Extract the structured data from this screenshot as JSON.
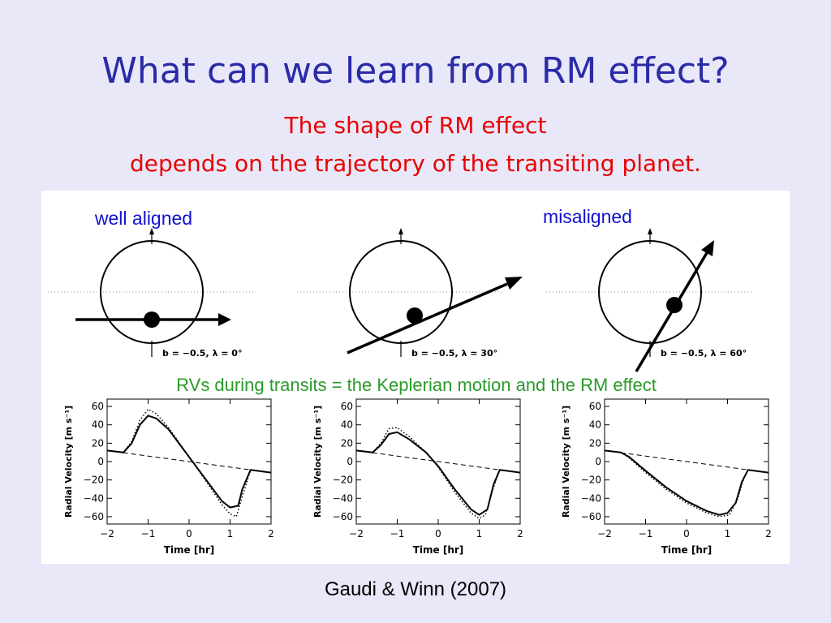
{
  "slide": {
    "title": "What can we learn from RM effect?",
    "subtitle_line1": "The shape of RM effect",
    "subtitle_line2": "depends on the trajectory of the transiting planet.",
    "rv_caption": "RVs during transits = the Keplerian motion and the RM effect",
    "credit": "Gaudi & Winn (2007)"
  },
  "colors": {
    "background": "#e8e8f8",
    "title": "#2b2ba8",
    "subtitle": "#e80000",
    "label_blue": "#1010d0",
    "caption_green": "#2a9a2a"
  },
  "geometry_panels": [
    {
      "label": "well aligned",
      "param_text": "b = −0.5, λ = 0°",
      "lambda_deg": 0
    },
    {
      "label": "",
      "param_text": "b = −0.5, λ = 30°",
      "lambda_deg": 30
    },
    {
      "label": "misaligned",
      "param_text": "b = −0.5, λ = 60°",
      "lambda_deg": 60
    }
  ],
  "chart_data": [
    {
      "type": "line",
      "xlabel": "Time [hr]",
      "ylabel": "Radial Velocity [m s⁻¹]",
      "xlim": [
        -2,
        2
      ],
      "ylim": [
        -68,
        68
      ],
      "xticks": [
        -2,
        -1,
        0,
        1,
        2
      ],
      "yticks": [
        60,
        40,
        20,
        0,
        -20,
        -40,
        -60
      ],
      "series": [
        {
          "style": "dashed",
          "x": [
            -2,
            2
          ],
          "y": [
            12,
            -12
          ]
        },
        {
          "style": "solid",
          "x": [
            -2.0,
            -1.6,
            -1.4,
            -1.2,
            -1.0,
            -0.8,
            -0.5,
            0.0,
            0.5,
            0.8,
            1.0,
            1.2,
            1.3,
            1.5,
            2.0
          ],
          "y": [
            12.0,
            10.0,
            20.0,
            40.0,
            50.0,
            47.0,
            35.0,
            5.0,
            -25.0,
            -43.0,
            -50.0,
            -48.0,
            -30.0,
            -9.0,
            -12.0
          ]
        },
        {
          "style": "dotted",
          "x": [
            -2.0,
            -1.6,
            -1.4,
            -1.2,
            -1.0,
            -0.8,
            -0.5,
            0.0,
            0.5,
            0.8,
            1.0,
            1.15,
            1.3,
            1.5,
            2.0
          ],
          "y": [
            12.0,
            10.0,
            22.0,
            45.0,
            57.0,
            52.0,
            37.0,
            5.0,
            -27.0,
            -47.0,
            -57.0,
            -60.0,
            -38.0,
            -9.0,
            -12.0
          ]
        }
      ]
    },
    {
      "type": "line",
      "xlabel": "Time [hr]",
      "ylabel": "Radial Velocity [m s⁻¹]",
      "xlim": [
        -2,
        2
      ],
      "ylim": [
        -68,
        68
      ],
      "xticks": [
        -2,
        -1,
        0,
        1,
        2
      ],
      "yticks": [
        60,
        40,
        20,
        0,
        -20,
        -40,
        -60
      ],
      "series": [
        {
          "style": "dashed",
          "x": [
            -2,
            2
          ],
          "y": [
            12,
            -12
          ]
        },
        {
          "style": "solid",
          "x": [
            -2.0,
            -1.6,
            -1.4,
            -1.2,
            -1.0,
            -0.7,
            -0.3,
            0.0,
            0.4,
            0.8,
            1.0,
            1.2,
            1.35,
            1.5,
            2.0
          ],
          "y": [
            12.0,
            10.0,
            18.0,
            30.0,
            32.0,
            24.0,
            10.0,
            -5.0,
            -30.0,
            -52.0,
            -58.0,
            -52.0,
            -25.0,
            -9.0,
            -12.0
          ]
        },
        {
          "style": "dotted",
          "x": [
            -2.0,
            -1.6,
            -1.4,
            -1.2,
            -1.0,
            -0.7,
            -0.3,
            0.0,
            0.4,
            0.8,
            1.0,
            1.15,
            1.35,
            1.5,
            2.0
          ],
          "y": [
            12.0,
            10.0,
            20.0,
            36.0,
            37.0,
            27.0,
            10.0,
            -6.0,
            -33.0,
            -56.0,
            -62.0,
            -58.0,
            -28.0,
            -9.0,
            -12.0
          ]
        }
      ]
    },
    {
      "type": "line",
      "xlabel": "Time [hr]",
      "ylabel": "Radial Velocity [m s⁻¹]",
      "xlim": [
        -2,
        2
      ],
      "ylim": [
        -68,
        68
      ],
      "xticks": [
        -2,
        -1,
        0,
        1,
        2
      ],
      "yticks": [
        60,
        40,
        20,
        0,
        -20,
        -40,
        -60
      ],
      "series": [
        {
          "style": "dashed",
          "x": [
            -2,
            2
          ],
          "y": [
            12,
            -12
          ]
        },
        {
          "style": "solid",
          "x": [
            -2.0,
            -1.6,
            -1.4,
            -1.0,
            -0.5,
            0.0,
            0.5,
            0.8,
            1.0,
            1.2,
            1.35,
            1.5,
            2.0
          ],
          "y": [
            12.0,
            10.0,
            5.0,
            -10.0,
            -28.0,
            -43.0,
            -54.0,
            -58.0,
            -56.0,
            -45.0,
            -22.0,
            -9.0,
            -12.0
          ]
        },
        {
          "style": "dotted",
          "x": [
            -2.0,
            -1.6,
            -1.4,
            -1.0,
            -0.5,
            0.0,
            0.5,
            0.8,
            1.05,
            1.25,
            1.4,
            1.5,
            2.0
          ],
          "y": [
            12.0,
            10.0,
            4.0,
            -12.0,
            -30.0,
            -45.0,
            -56.0,
            -60.0,
            -58.0,
            -40.0,
            -18.0,
            -9.0,
            -12.0
          ]
        }
      ]
    }
  ]
}
